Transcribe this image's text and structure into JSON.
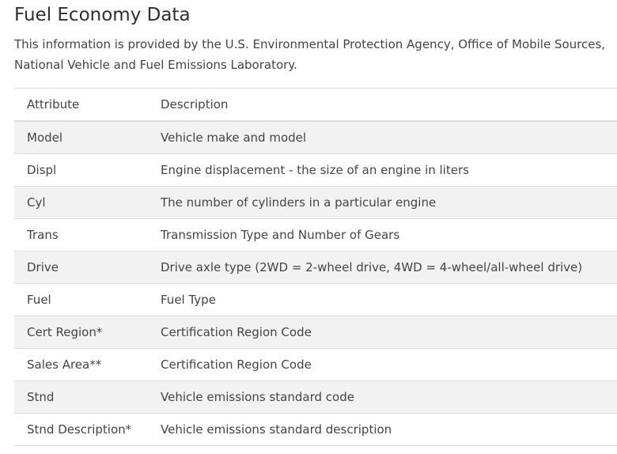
{
  "title": "Fuel Economy Data",
  "intro": "This information is provided by the U.S. Environmental Protection Agency, Office of Mobile Sources, National Vehicle and Fuel Emissions Laboratory.",
  "table": {
    "headers": [
      "Attribute",
      "Description"
    ],
    "rows": [
      {
        "attribute": "Model",
        "description": "Vehicle make and model"
      },
      {
        "attribute": "Displ",
        "description": "Engine displacement - the size of an engine in liters"
      },
      {
        "attribute": "Cyl",
        "description": "The number of cylinders in a particular engine"
      },
      {
        "attribute": "Trans",
        "description": "Transmission Type and Number of Gears"
      },
      {
        "attribute": "Drive",
        "description": "Drive axle type (2WD = 2-wheel drive, 4WD = 4-wheel/all-wheel drive)"
      },
      {
        "attribute": "Fuel",
        "description": "Fuel Type"
      },
      {
        "attribute": "Cert Region*",
        "description": "Certification Region Code"
      },
      {
        "attribute": "Sales Area**",
        "description": "Certification Region Code"
      },
      {
        "attribute": "Stnd",
        "description": "Vehicle emissions standard code"
      },
      {
        "attribute": "Stnd Description*",
        "description": "Vehicle emissions standard description"
      }
    ]
  }
}
